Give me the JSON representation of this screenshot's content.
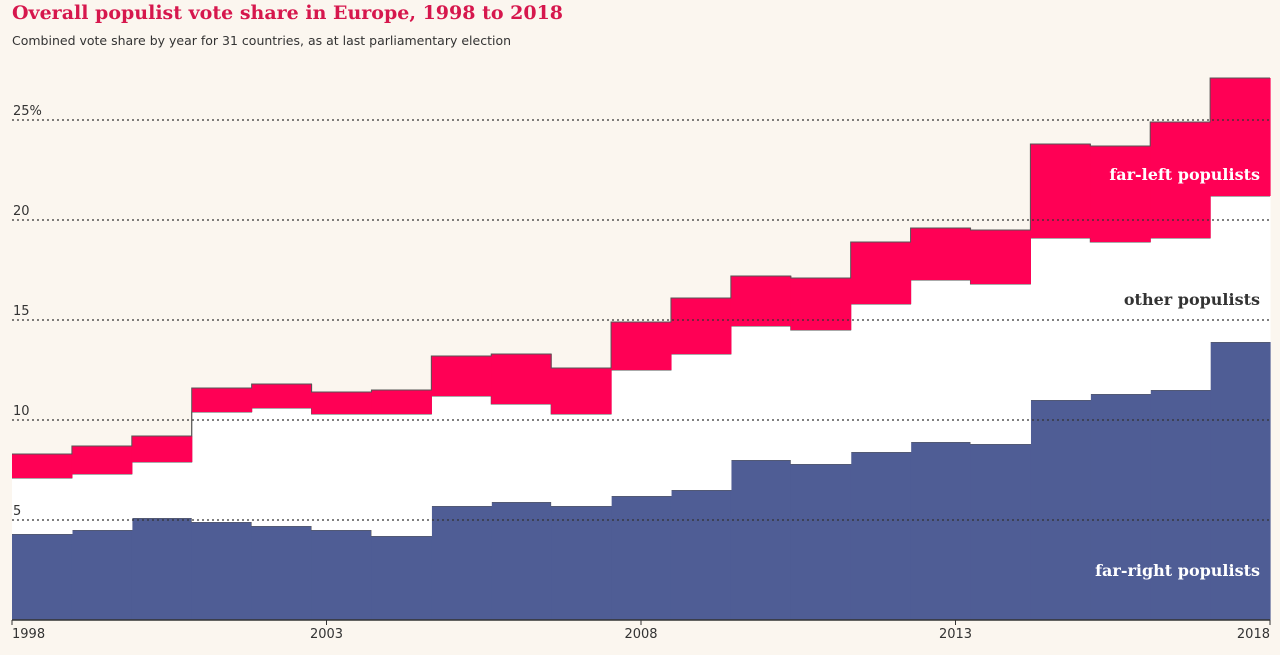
{
  "title": "Overall populist vote share in Europe, 1998 to 2018",
  "subtitle": "Combined vote share by year for 31 countries, as at last parliamentary election",
  "colors": {
    "background": "#fbf6ef",
    "far_right": "#4f5d95",
    "other": "#ffffff",
    "far_left": "#ff0055",
    "title": "#d6174d",
    "grid": "#333333"
  },
  "chart_data": {
    "type": "area",
    "title": "Overall populist vote share in Europe, 1998 to 2018",
    "subtitle": "Combined vote share by year for 31 countries, as at last parliamentary election",
    "stacked": true,
    "step": true,
    "x": [
      1998,
      1999,
      2000,
      2001,
      2002,
      2003,
      2004,
      2005,
      2006,
      2007,
      2008,
      2009,
      2010,
      2011,
      2012,
      2013,
      2014,
      2015,
      2016,
      2017,
      2018
    ],
    "xticks": [
      1998,
      2003,
      2008,
      2013,
      2018
    ],
    "xtick_labels": [
      "1998",
      "2003",
      "2008",
      "2013",
      "2018"
    ],
    "yticks": [
      5,
      10,
      15,
      20,
      25
    ],
    "ytick_labels": [
      "5",
      "10",
      "15",
      "20",
      "25%"
    ],
    "ylim": [
      0,
      27.5
    ],
    "grid": true,
    "series": [
      {
        "name": "far-right populists",
        "color": "#4f5d95",
        "values": [
          4.3,
          4.5,
          5.1,
          4.9,
          4.7,
          4.5,
          4.2,
          5.7,
          5.9,
          5.7,
          6.2,
          6.5,
          8.0,
          7.8,
          8.4,
          8.9,
          8.8,
          11.0,
          11.3,
          11.5,
          13.9
        ]
      },
      {
        "name": "other populists",
        "color": "#ffffff",
        "values": [
          2.8,
          2.8,
          2.8,
          5.5,
          5.9,
          5.8,
          6.1,
          5.5,
          4.9,
          4.6,
          6.3,
          6.8,
          6.7,
          6.7,
          7.4,
          8.1,
          8.0,
          8.1,
          7.6,
          7.6,
          7.3
        ]
      },
      {
        "name": "far-left populists",
        "color": "#ff0055",
        "values": [
          1.2,
          1.4,
          1.3,
          1.2,
          1.2,
          1.1,
          1.2,
          2.0,
          2.5,
          2.3,
          2.4,
          2.8,
          2.5,
          2.6,
          3.1,
          2.6,
          2.7,
          4.7,
          4.8,
          5.8,
          5.9
        ]
      }
    ]
  },
  "labels": {
    "far_left": "far-left populists",
    "other": "other populists",
    "far_right": "far-right populists"
  }
}
